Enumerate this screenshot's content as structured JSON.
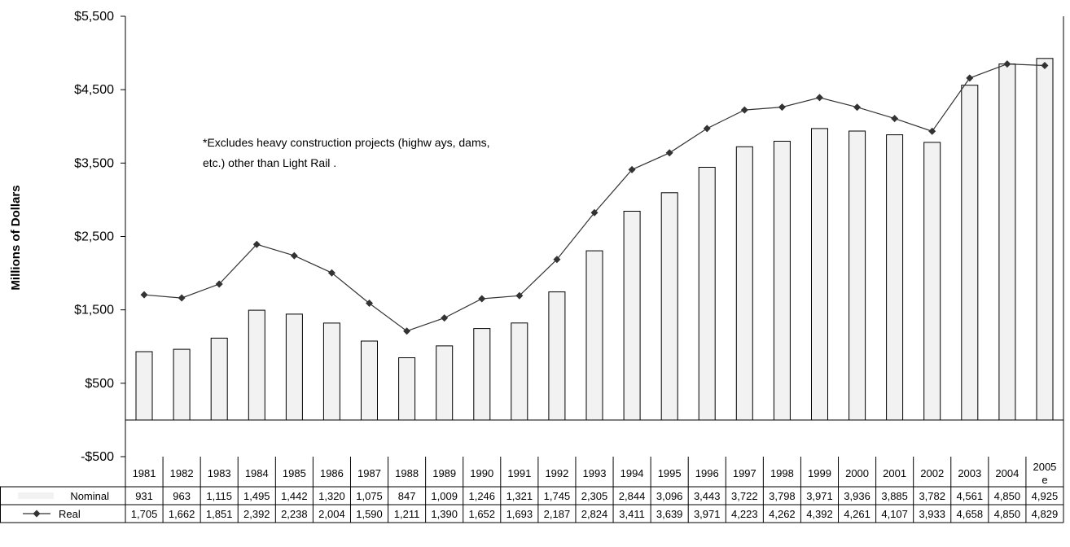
{
  "chart_data": {
    "type": "bar",
    "ylabel": "Millions of Dollars",
    "ylim": [
      -500,
      5500
    ],
    "ytick_labels": [
      "$5,500",
      "$4,500",
      "$3,500",
      "$2,500",
      "$1,500",
      "$500",
      "-$500"
    ],
    "yticks": [
      5500,
      4500,
      3500,
      2500,
      1500,
      500,
      -500
    ],
    "categories": [
      "1981",
      "1982",
      "1983",
      "1984",
      "1985",
      "1986",
      "1987",
      "1988",
      "1989",
      "1990",
      "1991",
      "1992",
      "1993",
      "1994",
      "1995",
      "1996",
      "1997",
      "1998",
      "1999",
      "2000",
      "2001",
      "2002",
      "2003",
      "2004",
      "2005e"
    ],
    "category_labels": [
      [
        "1981"
      ],
      [
        "1982"
      ],
      [
        "1983"
      ],
      [
        "1984"
      ],
      [
        "1985"
      ],
      [
        "1986"
      ],
      [
        "1987"
      ],
      [
        "1988"
      ],
      [
        "1989"
      ],
      [
        "1990"
      ],
      [
        "1991"
      ],
      [
        "1992"
      ],
      [
        "1993"
      ],
      [
        "1994"
      ],
      [
        "1995"
      ],
      [
        "1996"
      ],
      [
        "1997"
      ],
      [
        "1998"
      ],
      [
        "1999"
      ],
      [
        "2000"
      ],
      [
        "2001"
      ],
      [
        "2002"
      ],
      [
        "2003"
      ],
      [
        "2004"
      ],
      [
        "2005",
        "e"
      ]
    ],
    "series": [
      {
        "name": "Nominal",
        "type": "bar",
        "color": "#f2f2f2",
        "values": [
          931,
          963,
          1115,
          1495,
          1442,
          1320,
          1075,
          847,
          1009,
          1246,
          1321,
          1745,
          2305,
          2844,
          3096,
          3443,
          3722,
          3798,
          3971,
          3936,
          3885,
          3782,
          4561,
          4850,
          4925
        ],
        "labels": [
          "931",
          "963",
          "1,115",
          "1,495",
          "1,442",
          "1,320",
          "1,075",
          "847",
          "1,009",
          "1,246",
          "1,321",
          "1,745",
          "2,305",
          "2,844",
          "3,096",
          "3,443",
          "3,722",
          "3,798",
          "3,971",
          "3,936",
          "3,885",
          "3,782",
          "4,561",
          "4,850",
          "4,925"
        ]
      },
      {
        "name": "Real",
        "type": "line",
        "color": "#333333",
        "marker": "diamond",
        "values": [
          1705,
          1662,
          1851,
          2392,
          2238,
          2004,
          1590,
          1211,
          1390,
          1652,
          1693,
          2187,
          2824,
          3411,
          3639,
          3971,
          4223,
          4262,
          4392,
          4261,
          4107,
          3933,
          4658,
          4850,
          4829
        ],
        "labels": [
          "1,705",
          "1,662",
          "1,851",
          "2,392",
          "2,238",
          "2,004",
          "1,590",
          "1,211",
          "1,390",
          "1,652",
          "1,693",
          "2,187",
          "2,824",
          "3,411",
          "3,639",
          "3,971",
          "4,223",
          "4,262",
          "4,392",
          "4,261",
          "4,107",
          "3,933",
          "4,658",
          "4,850",
          "4,829"
        ]
      }
    ],
    "annotation": [
      "*Excludes heavy construction projects (highw ays, dams,",
      "etc.) other than Light Rail ."
    ],
    "grid": false,
    "legend": "data-table"
  }
}
